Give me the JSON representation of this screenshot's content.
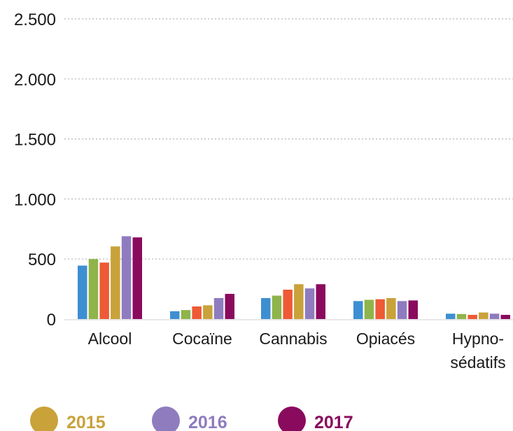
{
  "chart_data": {
    "type": "bar",
    "title": "",
    "xlabel": "",
    "ylabel": "",
    "ylim": [
      0,
      2500
    ],
    "yticks": [
      {
        "value": 0,
        "label": "0"
      },
      {
        "value": 500,
        "label": "500"
      },
      {
        "value": 1000,
        "label": "1.000"
      },
      {
        "value": 1500,
        "label": "1.500"
      },
      {
        "value": 2000,
        "label": "2.000"
      },
      {
        "value": 2500,
        "label": "2.500"
      }
    ],
    "grid": true,
    "categories": [
      {
        "lines": [
          "Alcool"
        ]
      },
      {
        "lines": [
          "Cocaïne"
        ]
      },
      {
        "lines": [
          "Cannabis"
        ]
      },
      {
        "lines": [
          "Opiacés"
        ]
      },
      {
        "lines": [
          "Hypno-",
          "sédatifs"
        ]
      }
    ],
    "series": [
      {
        "color": "#3d8fd1",
        "values": [
          445,
          65,
          175,
          150,
          45
        ]
      },
      {
        "color": "#8fb44a",
        "values": [
          500,
          75,
          195,
          160,
          42
        ]
      },
      {
        "color": "#ee5a35",
        "values": [
          470,
          105,
          245,
          165,
          35
        ]
      },
      {
        "name": "2015",
        "color": "#c9a23a",
        "values": [
          605,
          115,
          290,
          175,
          55
        ]
      },
      {
        "name": "2016",
        "color": "#8e7cbf",
        "values": [
          690,
          175,
          255,
          150,
          45
        ]
      },
      {
        "name": "2017",
        "color": "#8a0a5e",
        "values": [
          680,
          210,
          290,
          155,
          35
        ]
      }
    ],
    "legend": {
      "placement": "bottom",
      "entries": [
        {
          "label": "2015",
          "color": "#c9a23a"
        },
        {
          "label": "2016",
          "color": "#8e7cbf"
        },
        {
          "label": "2017",
          "color": "#8a0a5e"
        }
      ]
    }
  }
}
